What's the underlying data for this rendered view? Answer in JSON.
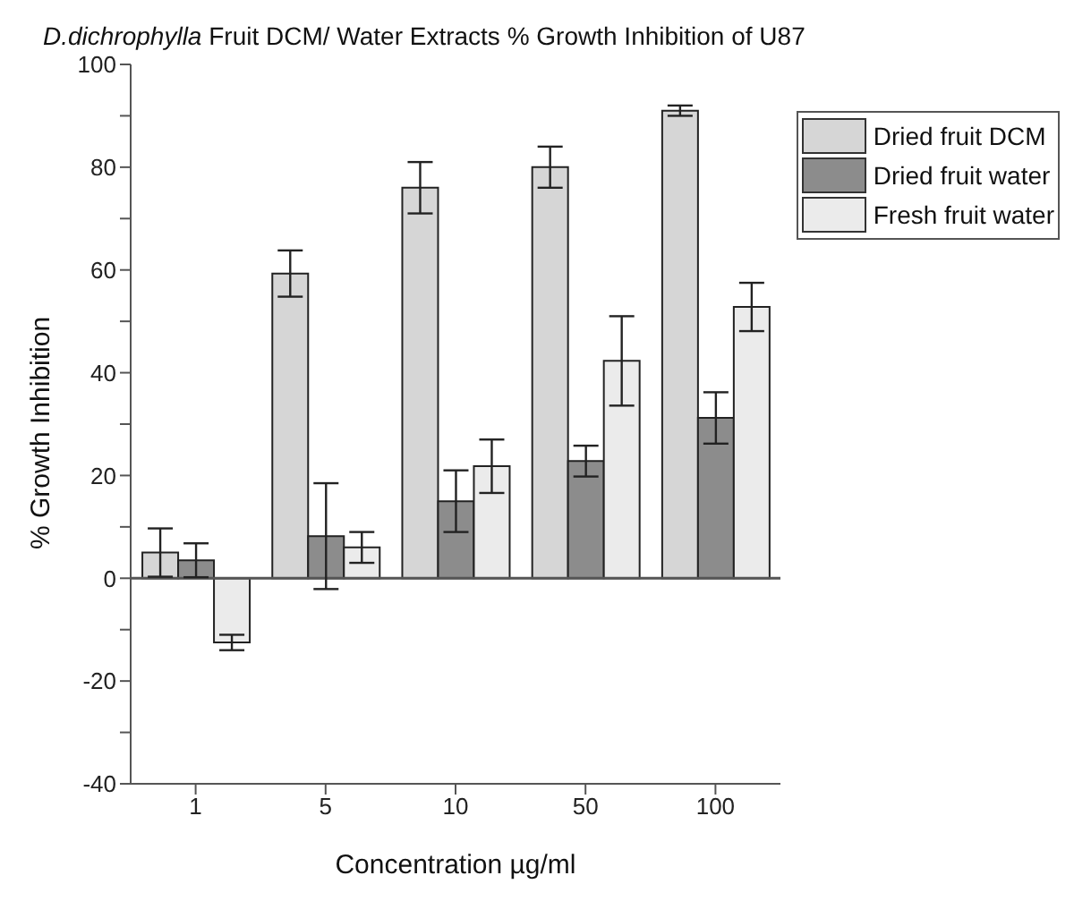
{
  "chart_data": {
    "type": "bar",
    "title": "D.dichrophylla Fruit DCM/ Water Extracts % Growth Inhibition of U87",
    "xlabel": "Concentration µg/ml",
    "ylabel": "% Growth Inhibition",
    "categories": [
      "1",
      "5",
      "10",
      "50",
      "100"
    ],
    "series": [
      {
        "name": "Dried fruit DCM",
        "color": "#d6d6d6",
        "values": [
          5,
          59.3,
          76,
          80,
          91
        ],
        "errors": [
          4.7,
          4.5,
          5,
          4,
          1
        ]
      },
      {
        "name": "Dried fruit water",
        "color": "#8c8c8c",
        "values": [
          3.5,
          8.2,
          15,
          22.8,
          31.2
        ],
        "errors": [
          3.3,
          10.3,
          6,
          3,
          5
        ]
      },
      {
        "name": "Fresh fruit water",
        "color": "#ebebeb",
        "values": [
          -12.5,
          6,
          21.8,
          42.3,
          52.8
        ],
        "errors": [
          1.5,
          3,
          5.2,
          8.7,
          4.7
        ]
      }
    ],
    "ylim": [
      -40,
      100
    ],
    "yticks": [
      -40,
      {
        "value": -30,
        "label": null
      },
      -20,
      {
        "value": -10,
        "label": null
      },
      0,
      {
        "value": 10,
        "label": null
      },
      20,
      {
        "value": 30,
        "label": null
      },
      40,
      {
        "value": 50,
        "label": null
      },
      60,
      {
        "value": 70,
        "label": null
      },
      80,
      {
        "value": 90,
        "label": null
      },
      100
    ],
    "ref_lines": [
      {
        "axis": "y",
        "value": 0,
        "color": "#555555"
      }
    ],
    "grid": false,
    "legend": "top right"
  }
}
